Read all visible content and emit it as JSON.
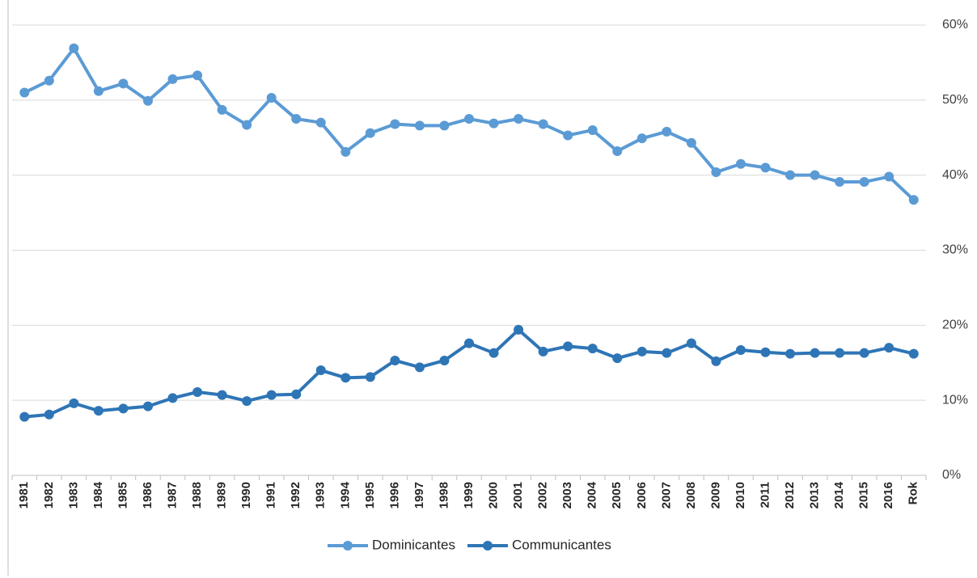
{
  "chart_data": {
    "type": "line",
    "categories": [
      "1981",
      "1982",
      "1983",
      "1984",
      "1985",
      "1986",
      "1987",
      "1988",
      "1989",
      "1990",
      "1991",
      "1992",
      "1993",
      "1994",
      "1995",
      "1996",
      "1997",
      "1998",
      "1999",
      "2000",
      "2001",
      "2002",
      "2003",
      "2004",
      "2005",
      "2006",
      "2007",
      "2008",
      "2009",
      "2010",
      "2011",
      "2012",
      "2013",
      "2014",
      "2015",
      "2016",
      "Rok"
    ],
    "series": [
      {
        "name": "Dominicantes",
        "color": "#5b9bd5",
        "values": [
          51.0,
          52.6,
          56.9,
          51.2,
          52.2,
          49.9,
          52.8,
          53.3,
          48.7,
          46.7,
          50.3,
          47.5,
          47.0,
          43.1,
          45.6,
          46.8,
          46.6,
          46.6,
          47.5,
          46.9,
          47.5,
          46.8,
          45.3,
          46.0,
          43.2,
          44.9,
          45.8,
          44.3,
          40.4,
          41.5,
          41.0,
          40.0,
          40.0,
          39.1,
          39.1,
          39.8,
          36.7
        ]
      },
      {
        "name": "Communicantes",
        "color": "#2e75b6",
        "values": [
          7.8,
          8.1,
          9.6,
          8.6,
          8.9,
          9.2,
          10.3,
          11.1,
          10.7,
          9.9,
          10.7,
          10.8,
          14.0,
          13.0,
          13.1,
          15.3,
          14.4,
          15.3,
          17.6,
          16.3,
          19.4,
          16.5,
          17.2,
          16.9,
          15.6,
          16.5,
          16.3,
          17.6,
          15.2,
          16.7,
          16.4,
          16.2,
          16.3,
          16.3,
          16.3,
          17.0,
          16.2
        ]
      }
    ],
    "ylim": [
      0,
      60
    ],
    "yticks": [
      {
        "value": 0,
        "label": "0%"
      },
      {
        "value": 10,
        "label": "10%"
      },
      {
        "value": 20,
        "label": "20%"
      },
      {
        "value": 30,
        "label": "30%"
      },
      {
        "value": 40,
        "label": "40%"
      },
      {
        "value": 50,
        "label": "50%"
      },
      {
        "value": 60,
        "label": "60%"
      }
    ],
    "grid": true,
    "y_axis_side": "right",
    "legend": "bottom"
  }
}
